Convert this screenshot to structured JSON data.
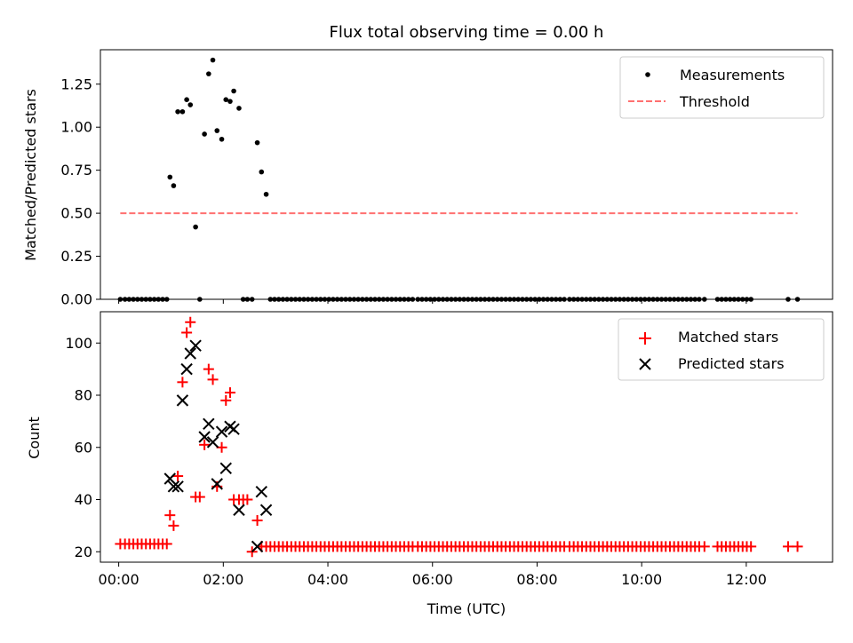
{
  "title": "Flux total observing time = 0.00 h",
  "chart_data": [
    {
      "type": "scatter",
      "ylabel": "Matched/Predicted stars",
      "xlim": [
        -0.35,
        13.65
      ],
      "ylim": [
        0,
        1.45
      ],
      "yticks": [
        0.0,
        0.25,
        0.5,
        0.75,
        1.0,
        1.25
      ],
      "ytick_labels": [
        "0.00",
        "0.25",
        "0.50",
        "0.75",
        "1.00",
        "1.25"
      ],
      "legend_position": "top-right",
      "series": [
        {
          "name": "Measurements",
          "marker": "dot",
          "color": "#000000",
          "x": [
            0.03,
            0.12,
            0.2,
            0.28,
            0.36,
            0.44,
            0.52,
            0.6,
            0.68,
            0.76,
            0.84,
            0.92,
            0.98,
            1.05,
            1.13,
            1.22,
            1.3,
            1.37,
            1.47,
            1.55,
            1.64,
            1.72,
            1.8,
            1.88,
            1.97,
            2.05,
            2.13,
            2.2,
            2.3,
            2.38,
            2.46,
            2.55,
            2.65,
            2.73,
            2.82,
            2.9,
            2.98,
            3.06,
            3.14,
            3.22,
            3.3,
            3.38,
            3.46,
            3.54,
            3.62,
            3.7,
            3.78,
            3.86,
            3.94,
            4.02,
            4.1,
            4.18,
            4.26,
            4.34,
            4.42,
            4.5,
            4.58,
            4.66,
            4.74,
            4.82,
            4.9,
            4.98,
            5.06,
            5.14,
            5.22,
            5.3,
            5.38,
            5.46,
            5.54,
            5.62,
            5.72,
            5.8,
            5.88,
            5.96,
            6.04,
            6.12,
            6.2,
            6.28,
            6.36,
            6.44,
            6.52,
            6.6,
            6.68,
            6.76,
            6.84,
            6.92,
            7.0,
            7.08,
            7.16,
            7.24,
            7.32,
            7.4,
            7.48,
            7.56,
            7.64,
            7.72,
            7.8,
            7.88,
            7.96,
            8.04,
            8.12,
            8.2,
            8.28,
            8.36,
            8.44,
            8.52,
            8.62,
            8.7,
            8.78,
            8.86,
            8.94,
            9.02,
            9.1,
            9.18,
            9.26,
            9.34,
            9.42,
            9.5,
            9.58,
            9.66,
            9.74,
            9.82,
            9.9,
            9.98,
            10.06,
            10.14,
            10.22,
            10.3,
            10.38,
            10.46,
            10.54,
            10.62,
            10.7,
            10.78,
            10.86,
            10.94,
            11.02,
            11.1,
            11.2,
            11.45,
            11.53,
            11.61,
            11.69,
            11.77,
            11.85,
            11.93,
            12.01,
            12.09,
            12.8,
            12.98
          ],
          "y": [
            0,
            0,
            0,
            0,
            0,
            0,
            0,
            0,
            0,
            0,
            0,
            0,
            0.71,
            0.66,
            1.09,
            1.09,
            1.16,
            1.13,
            0.42,
            0,
            0.96,
            1.31,
            1.39,
            0.98,
            0.93,
            1.16,
            1.15,
            1.21,
            1.11,
            0,
            0,
            0,
            0.91,
            0.74,
            0.61,
            0,
            0,
            0,
            0,
            0,
            0,
            0,
            0,
            0,
            0,
            0,
            0,
            0,
            0,
            0,
            0,
            0,
            0,
            0,
            0,
            0,
            0,
            0,
            0,
            0,
            0,
            0,
            0,
            0,
            0,
            0,
            0,
            0,
            0,
            0,
            0,
            0,
            0,
            0,
            0,
            0,
            0,
            0,
            0,
            0,
            0,
            0,
            0,
            0,
            0,
            0,
            0,
            0,
            0,
            0,
            0,
            0,
            0,
            0,
            0,
            0,
            0,
            0,
            0,
            0,
            0,
            0,
            0,
            0,
            0,
            0,
            0,
            0,
            0,
            0,
            0,
            0,
            0,
            0,
            0,
            0,
            0,
            0,
            0,
            0,
            0,
            0,
            0,
            0,
            0,
            0,
            0,
            0,
            0,
            0,
            0,
            0,
            0,
            0,
            0,
            0,
            0,
            0,
            0,
            0,
            0,
            0,
            0,
            0,
            0,
            0,
            0,
            0,
            0,
            0
          ]
        },
        {
          "name": "Threshold",
          "marker": "dashed-line",
          "color": "#ff7070",
          "x": [
            0.03,
            12.98
          ],
          "y": [
            0.5,
            0.5
          ]
        }
      ]
    },
    {
      "type": "scatter",
      "ylabel": "Count",
      "xlabel": "Time (UTC)",
      "xlim": [
        -0.35,
        13.65
      ],
      "ylim": [
        16,
        112
      ],
      "yticks": [
        20,
        40,
        60,
        80,
        100
      ],
      "ytick_labels": [
        "20",
        "40",
        "60",
        "80",
        "100"
      ],
      "xticks": [
        0,
        2,
        4,
        6,
        8,
        10,
        12
      ],
      "xtick_labels": [
        "00:00",
        "02:00",
        "04:00",
        "06:00",
        "08:00",
        "10:00",
        "12:00"
      ],
      "legend_position": "top-right",
      "series": [
        {
          "name": "Matched stars",
          "marker": "plus",
          "color": "#ff0000",
          "x": [
            0.03,
            0.12,
            0.2,
            0.28,
            0.36,
            0.44,
            0.52,
            0.6,
            0.68,
            0.76,
            0.84,
            0.92,
            0.98,
            1.05,
            1.13,
            1.22,
            1.3,
            1.37,
            1.47,
            1.55,
            1.64,
            1.72,
            1.8,
            1.88,
            1.97,
            2.05,
            2.13,
            2.2,
            2.3,
            2.38,
            2.46,
            2.55,
            2.65,
            2.73,
            2.82,
            2.9,
            2.98,
            3.06,
            3.14,
            3.22,
            3.3,
            3.38,
            3.46,
            3.54,
            3.62,
            3.7,
            3.78,
            3.86,
            3.94,
            4.02,
            4.1,
            4.18,
            4.26,
            4.34,
            4.42,
            4.5,
            4.58,
            4.66,
            4.74,
            4.82,
            4.9,
            4.98,
            5.06,
            5.14,
            5.22,
            5.3,
            5.38,
            5.46,
            5.54,
            5.62,
            5.72,
            5.8,
            5.88,
            5.96,
            6.04,
            6.12,
            6.2,
            6.28,
            6.36,
            6.44,
            6.52,
            6.6,
            6.68,
            6.76,
            6.84,
            6.92,
            7.0,
            7.08,
            7.16,
            7.24,
            7.32,
            7.4,
            7.48,
            7.56,
            7.64,
            7.72,
            7.8,
            7.88,
            7.96,
            8.04,
            8.12,
            8.2,
            8.28,
            8.36,
            8.44,
            8.52,
            8.62,
            8.7,
            8.78,
            8.86,
            8.94,
            9.02,
            9.1,
            9.18,
            9.26,
            9.34,
            9.42,
            9.5,
            9.58,
            9.66,
            9.74,
            9.82,
            9.9,
            9.98,
            10.06,
            10.14,
            10.22,
            10.3,
            10.38,
            10.46,
            10.54,
            10.62,
            10.7,
            10.78,
            10.86,
            10.94,
            11.02,
            11.1,
            11.2,
            11.45,
            11.53,
            11.61,
            11.69,
            11.77,
            11.85,
            11.93,
            12.01,
            12.09,
            12.8,
            12.98
          ],
          "y": [
            23,
            23,
            23,
            23,
            23,
            23,
            23,
            23,
            23,
            23,
            23,
            23,
            34,
            30,
            49,
            85,
            104,
            108,
            41,
            41,
            61,
            90,
            86,
            45,
            60,
            78,
            81,
            40,
            40,
            40,
            40,
            20,
            32,
            22,
            22,
            22,
            22,
            22,
            22,
            22,
            22,
            22,
            22,
            22,
            22,
            22,
            22,
            22,
            22,
            22,
            22,
            22,
            22,
            22,
            22,
            22,
            22,
            22,
            22,
            22,
            22,
            22,
            22,
            22,
            22,
            22,
            22,
            22,
            22,
            22,
            22,
            22,
            22,
            22,
            22,
            22,
            22,
            22,
            22,
            22,
            22,
            22,
            22,
            22,
            22,
            22,
            22,
            22,
            22,
            22,
            22,
            22,
            22,
            22,
            22,
            22,
            22,
            22,
            22,
            22,
            22,
            22,
            22,
            22,
            22,
            22,
            22,
            22,
            22,
            22,
            22,
            22,
            22,
            22,
            22,
            22,
            22,
            22,
            22,
            22,
            22,
            22,
            22,
            22,
            22,
            22,
            22,
            22,
            22,
            22,
            22,
            22,
            22,
            22,
            22,
            22,
            22,
            22,
            22,
            22,
            22,
            22,
            22,
            22,
            22,
            22,
            22,
            22,
            22,
            22
          ]
        },
        {
          "name": "Predicted stars",
          "marker": "x",
          "color": "#000000",
          "x": [
            0.98,
            1.05,
            1.13,
            1.22,
            1.3,
            1.37,
            1.47,
            1.64,
            1.72,
            1.8,
            1.88,
            1.97,
            2.05,
            2.13,
            2.2,
            2.3,
            2.65,
            2.73,
            2.82
          ],
          "y": [
            48,
            45,
            45,
            78,
            90,
            96,
            99,
            64,
            69,
            62,
            46,
            66,
            52,
            68,
            67,
            36,
            22,
            43,
            36
          ]
        }
      ]
    }
  ]
}
